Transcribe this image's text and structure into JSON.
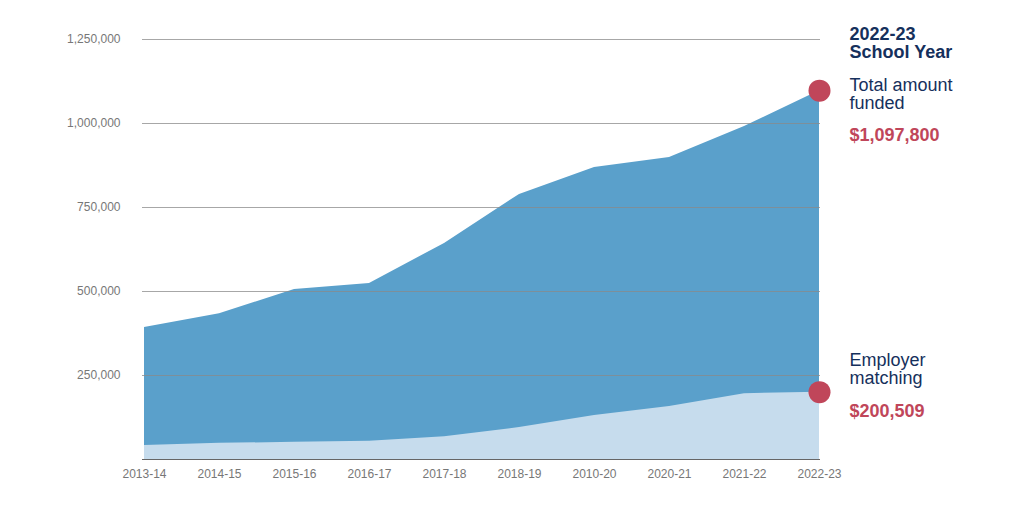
{
  "chart_data": {
    "type": "area",
    "annotation": [
      "2022-23",
      "School Year"
    ],
    "categories": [
      "2013-14",
      "2014-15",
      "2015-16",
      "2016-17",
      "2017-18",
      "2018-19",
      "2010-20",
      "2020-21",
      "2021-22",
      "2022-23"
    ],
    "series": [
      {
        "name": "Total amount funded",
        "color": "#5aa0cb",
        "values": [
          393000,
          434000,
          506000,
          524000,
          643000,
          789000,
          869000,
          899000,
          991000,
          1097800
        ],
        "value_labels": [
          null,
          null,
          null,
          null,
          null,
          null,
          null,
          null,
          null,
          "$1,097,800"
        ]
      },
      {
        "name": "Employer matching",
        "color": "#c6dced",
        "values": [
          42000,
          48000,
          51000,
          54000,
          68000,
          95000,
          131000,
          158000,
          196000,
          200509
        ],
        "value_labels": [
          null,
          null,
          null,
          null,
          null,
          null,
          null,
          null,
          null,
          "$200,509"
        ]
      }
    ],
    "ylim": [
      0,
      1250000
    ],
    "yticks": [
      {
        "value": 250000,
        "label": "250,000"
      },
      {
        "value": 500000,
        "label": "500,000"
      },
      {
        "value": 750000,
        "label": "750,000"
      },
      {
        "value": 1000000,
        "label": "1,000,000"
      },
      {
        "value": 1250000,
        "label": "1,250,000"
      }
    ],
    "grid": true
  }
}
